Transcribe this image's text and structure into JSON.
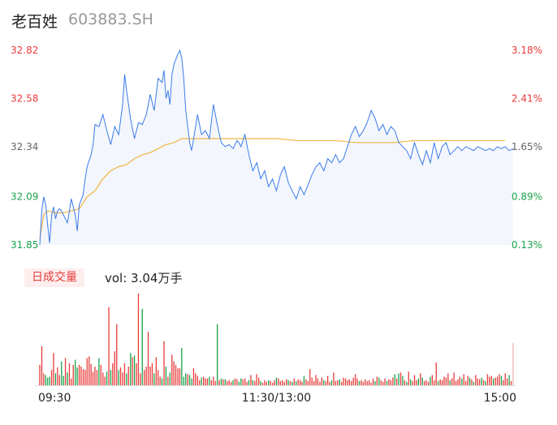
{
  "header": {
    "name": "老百姓",
    "code": "603883.SH"
  },
  "volume": {
    "tag_label": "日成交量",
    "label": "vol: 3.04万手"
  },
  "colors": {
    "up": "#e83a3a",
    "down": "#19a34a",
    "price": "#3a7bea",
    "avg": "#f0b541",
    "neutral": "#666666"
  },
  "chart_data": {
    "type": "line",
    "title": "",
    "ylim": [
      31.85,
      32.82
    ],
    "y_ticks_left": [
      {
        "value": 32.82,
        "label": "32.82",
        "color": "up"
      },
      {
        "value": 32.58,
        "label": "32.58",
        "color": "up"
      },
      {
        "value": 32.34,
        "label": "32.34",
        "color": "neutral"
      },
      {
        "value": 32.09,
        "label": "32.09",
        "color": "down"
      },
      {
        "value": 31.85,
        "label": "31.85",
        "color": "down"
      }
    ],
    "y_ticks_right": [
      {
        "value": 32.82,
        "label": "3.18%",
        "color": "up"
      },
      {
        "value": 32.58,
        "label": "2.41%",
        "color": "up"
      },
      {
        "value": 32.34,
        "label": "1.65%",
        "color": "neutral"
      },
      {
        "value": 32.09,
        "label": "0.89%",
        "color": "down"
      },
      {
        "value": 31.85,
        "label": "0.13%",
        "color": "down"
      }
    ],
    "x_ticks": [
      {
        "minute": 0,
        "label": "09:30"
      },
      {
        "minute": 120,
        "label": "11:30/13:00"
      },
      {
        "minute": 240,
        "label": "15:00"
      }
    ],
    "series": [
      {
        "key": "price",
        "minutes": [
          0,
          1,
          2,
          3,
          4,
          5,
          6,
          7,
          8,
          9,
          10,
          11,
          12,
          14,
          16,
          18,
          19,
          20,
          22,
          23,
          24,
          26,
          27,
          28,
          30,
          32,
          34,
          36,
          38,
          40,
          42,
          43,
          44,
          46,
          48,
          50,
          52,
          54,
          56,
          58,
          60,
          62,
          63,
          64,
          65,
          66,
          67,
          68,
          70,
          71,
          72,
          73,
          74,
          76,
          77,
          78,
          80,
          82,
          84,
          86,
          88,
          90,
          92,
          94,
          96,
          98,
          100,
          101,
          102,
          104,
          106,
          108,
          110,
          112,
          114,
          116,
          118,
          120,
          122,
          124,
          126,
          128,
          130,
          132,
          134,
          136,
          138,
          140,
          142,
          144,
          146,
          148,
          150,
          152,
          154,
          156,
          158,
          160,
          162,
          164,
          166,
          168,
          170,
          172,
          174,
          176,
          178,
          180,
          182,
          184,
          186,
          188,
          190,
          192,
          194,
          196,
          198,
          200,
          202,
          204,
          206,
          208,
          210,
          212,
          214,
          216,
          218,
          220,
          222,
          224,
          226,
          228,
          230,
          232,
          234,
          236,
          238,
          240
        ],
        "values": [
          31.85,
          32.02,
          32.09,
          32.05,
          31.95,
          31.86,
          32.0,
          32.04,
          31.98,
          32.02,
          32.03,
          32.02,
          32.0,
          31.96,
          32.08,
          32.0,
          31.92,
          32.05,
          32.1,
          32.18,
          32.24,
          32.3,
          32.35,
          32.45,
          32.44,
          32.5,
          32.42,
          32.35,
          32.44,
          32.4,
          32.55,
          32.7,
          32.62,
          32.48,
          32.38,
          32.46,
          32.45,
          32.5,
          32.6,
          32.52,
          32.68,
          32.66,
          32.72,
          32.58,
          32.62,
          32.55,
          32.7,
          32.75,
          32.8,
          32.82,
          32.78,
          32.68,
          32.52,
          32.36,
          32.32,
          32.38,
          32.5,
          32.4,
          32.42,
          32.38,
          32.55,
          32.45,
          32.36,
          32.34,
          32.35,
          32.33,
          32.37,
          32.36,
          32.34,
          32.4,
          32.3,
          32.22,
          32.26,
          32.18,
          32.22,
          32.14,
          32.18,
          32.12,
          32.2,
          32.24,
          32.16,
          32.12,
          32.08,
          32.14,
          32.1,
          32.15,
          32.2,
          32.24,
          32.26,
          32.22,
          32.28,
          32.26,
          32.3,
          32.26,
          32.28,
          32.34,
          32.4,
          32.44,
          32.39,
          32.42,
          32.46,
          32.52,
          32.48,
          32.42,
          32.45,
          32.4,
          32.44,
          32.42,
          32.36,
          32.34,
          32.32,
          32.28,
          32.36,
          32.3,
          32.25,
          32.32,
          32.26,
          32.36,
          32.28,
          32.34,
          32.36,
          32.3,
          32.32,
          32.34,
          32.32,
          32.34,
          32.33,
          32.32,
          32.34,
          32.33,
          32.32,
          32.33,
          32.32,
          32.34,
          32.33,
          32.34,
          32.32,
          32.33
        ]
      },
      {
        "key": "avg",
        "minutes": [
          0,
          2,
          4,
          8,
          12,
          16,
          20,
          24,
          28,
          32,
          36,
          40,
          44,
          48,
          52,
          56,
          60,
          64,
          68,
          72,
          76,
          80,
          84,
          88,
          92,
          96,
          100,
          104,
          108,
          112,
          116,
          120,
          130,
          140,
          150,
          160,
          170,
          180,
          190,
          200,
          210,
          220,
          230,
          236
        ],
        "values": [
          31.88,
          32.0,
          32.02,
          32.01,
          32.01,
          32.02,
          32.03,
          32.09,
          32.12,
          32.18,
          32.22,
          32.24,
          32.25,
          32.28,
          32.3,
          32.31,
          32.33,
          32.35,
          32.36,
          32.38,
          32.38,
          32.38,
          32.38,
          32.38,
          32.38,
          32.38,
          32.38,
          32.38,
          32.38,
          32.38,
          32.38,
          32.38,
          32.37,
          32.37,
          32.37,
          32.36,
          32.36,
          32.36,
          32.37,
          32.37,
          32.37,
          32.37,
          32.37,
          32.37
        ]
      },
      {
        "key": "volume",
        "minutes": [
          0,
          1,
          2,
          3,
          4,
          5,
          6,
          7,
          8,
          9,
          10,
          11,
          12,
          13,
          14,
          15,
          16,
          17,
          18,
          19,
          20,
          21,
          22,
          23,
          24,
          25,
          26,
          27,
          28,
          29,
          30,
          31,
          32,
          33,
          34,
          35,
          36,
          37,
          38,
          39,
          40,
          41,
          42,
          43,
          44,
          45,
          46,
          47,
          48,
          49,
          50,
          51,
          52,
          53,
          54,
          55,
          56,
          57,
          58,
          59,
          60,
          61,
          62,
          63,
          64,
          65,
          66,
          67,
          68,
          69,
          70,
          71,
          72,
          73,
          74,
          75,
          76,
          77,
          78,
          79,
          80,
          81,
          82,
          83,
          84,
          85,
          86,
          87,
          88,
          89,
          90,
          91,
          92,
          93,
          94,
          95,
          96,
          97,
          98,
          99,
          100,
          101,
          102,
          103,
          104,
          105,
          106,
          107,
          108,
          109,
          110,
          111,
          112,
          113,
          114,
          115,
          116,
          117,
          118,
          119,
          120,
          121,
          122,
          123,
          124,
          125,
          126,
          127,
          128,
          129,
          130,
          131,
          132,
          133,
          134,
          135,
          136,
          137,
          138,
          139,
          140,
          141,
          142,
          143,
          144,
          145,
          146,
          147,
          148,
          149,
          150,
          151,
          152,
          153,
          154,
          155,
          156,
          157,
          158,
          159,
          160,
          161,
          162,
          163,
          164,
          165,
          166,
          167,
          168,
          169,
          170,
          171,
          172,
          173,
          174,
          175,
          176,
          177,
          178,
          179,
          180,
          181,
          182,
          183,
          184,
          185,
          186,
          187,
          188,
          189,
          190,
          191,
          192,
          193,
          194,
          195,
          196,
          197,
          198,
          199,
          200,
          201,
          202,
          203,
          204,
          205,
          206,
          207,
          208,
          209,
          210,
          211,
          212,
          213,
          214,
          215,
          216,
          217,
          218,
          219,
          220,
          221,
          222,
          223,
          224,
          225,
          226,
          227,
          228,
          229,
          230,
          231,
          232,
          233,
          234,
          235,
          236,
          237,
          238,
          239,
          240
        ],
        "values": [
          24,
          46,
          14,
          12,
          9,
          10,
          18,
          38,
          14,
          21,
          12,
          28,
          11,
          32,
          15,
          26,
          8,
          24,
          30,
          21,
          24,
          22,
          19,
          18,
          32,
          34,
          25,
          16,
          22,
          18,
          32,
          24,
          15,
          10,
          16,
          92,
          18,
          26,
          40,
          72,
          18,
          21,
          15,
          26,
          14,
          22,
          38,
          33,
          35,
          26,
          108,
          14,
          90,
          18,
          22,
          63,
          22,
          26,
          14,
          33,
          18,
          10,
          8,
          52,
          22,
          10,
          15,
          36,
          28,
          24,
          20,
          20,
          44,
          10,
          14,
          13,
          12,
          8,
          20,
          14,
          11,
          6,
          9,
          10,
          8,
          8,
          10,
          6,
          10,
          5,
          72,
          6,
          8,
          7,
          7,
          5,
          6,
          4,
          6,
          8,
          7,
          4,
          8,
          7,
          8,
          4,
          6,
          12,
          6,
          5,
          13,
          9,
          5,
          3,
          6,
          4,
          6,
          5,
          3,
          6,
          9,
          8,
          5,
          6,
          4,
          7,
          6,
          5,
          4,
          8,
          5,
          7,
          6,
          4,
          11,
          7,
          5,
          19,
          9,
          5,
          12,
          8,
          4,
          9,
          6,
          5,
          11,
          4,
          6,
          15,
          5,
          6,
          7,
          4,
          9,
          8,
          6,
          7,
          5,
          9,
          13,
          8,
          5,
          6,
          4,
          7,
          5,
          6,
          3,
          8,
          5,
          10,
          9,
          6,
          4,
          8,
          5,
          7,
          6,
          9,
          13,
          8,
          14,
          15,
          11,
          6,
          4,
          16,
          7,
          5,
          12,
          6,
          8,
          14,
          9,
          5,
          6,
          4,
          10,
          12,
          6,
          27,
          5,
          7,
          6,
          10,
          9,
          14,
          6,
          8,
          15,
          5,
          7,
          10,
          8,
          13,
          5,
          11,
          9,
          7,
          4,
          12,
          8,
          7,
          9,
          6,
          5,
          13,
          10,
          11,
          8,
          9,
          10,
          13,
          11,
          6,
          14,
          8,
          12,
          5,
          50
        ]
      }
    ]
  }
}
